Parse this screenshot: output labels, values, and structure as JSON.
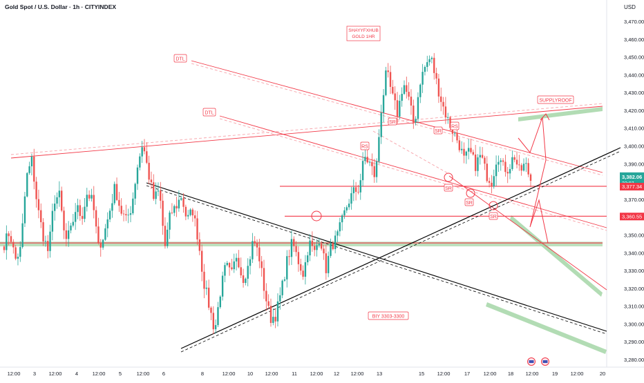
{
  "header": {
    "symbol": "Gold Spot / U.S. Dollar · 1h · CITYINDEX",
    "currency": "USD"
  },
  "colors": {
    "up": "#26a69a",
    "down": "#ef5350",
    "red_line": "#f23645",
    "pink_line": "#f7a1a8",
    "black_line": "#000000",
    "green_zone": "#a5d6a7",
    "last_price_bg": "#26a69a",
    "level_bg": "#f23645"
  },
  "chart_data": {
    "type": "candlestick",
    "title": "Gold Spot / U.S. Dollar · 1h · CITYINDEX",
    "ylabel": "USD",
    "ylim": [
      3275,
      3478
    ],
    "y_ticks": [
      "3,470.00",
      "3,460.00",
      "3,450.00",
      "3,440.00",
      "3,430.00",
      "3,420.00",
      "3,410.00",
      "3,400.00",
      "3,390.00",
      "3,380.00",
      "3,370.00",
      "3,360.00",
      "3,350.00",
      "3,340.00",
      "3,330.00",
      "3,320.00",
      "3,310.00",
      "3,300.00",
      "3,290.00",
      "3,280.00"
    ],
    "x_ticks": [
      "12:00",
      "3",
      "12:00",
      "4",
      "12:00",
      "5",
      "12:00",
      "6",
      "8",
      "12:00",
      "10",
      "12:00",
      "11",
      "12:00",
      "12",
      "12:00",
      "13",
      "15",
      "12:00",
      "17",
      "12:00",
      "18",
      "12:00",
      "19",
      "12:00",
      "20"
    ],
    "price_labels": {
      "last": "3,382.06",
      "countdown": "22:07",
      "level1": "3,377.34",
      "level2": "3,360.55"
    },
    "horizontal_levels": [
      3377.34,
      3360.55,
      3345.5
    ],
    "annotations": {
      "header_box": [
        "SHAYYFXHUB",
        "GOLD 1HR"
      ],
      "dtl_upper": "DTL",
      "dtl_lower": "DTL",
      "supply_roof": "SUPPLYROOF",
      "buy_zone": "BIY  3303-3300",
      "rs": "RS",
      "sr": "SR"
    },
    "path_targets": [
      [
        3345,
        3352,
        3336,
        3342,
        3382,
        3392,
        3366,
        3350,
        3340,
        3370,
        3372,
        3346,
        3352,
        3366,
        3360,
        3374,
        3368,
        3343,
        3350,
        3363,
        3377,
        3364,
        3358,
        3366,
        3388,
        3402,
        3385,
        3370,
        3375,
        3343,
        3362,
        3366,
        3372,
        3358,
        3364,
        3348,
        3324,
        3310,
        3296,
        3318,
        3333,
        3327,
        3340,
        3325,
        3332,
        3348,
        3338,
        3318,
        3303,
        3305,
        3318,
        3335,
        3346,
        3336,
        3328,
        3346,
        3340,
        3350,
        3330,
        3344,
        3348,
        3358,
        3368,
        3374,
        3376,
        3394,
        3390,
        3382,
        3420,
        3442,
        3428,
        3418,
        3436,
        3426,
        3411,
        3436,
        3445,
        3450,
        3436,
        3424,
        3415,
        3408,
        3402,
        3392,
        3397,
        3389,
        3395,
        3384,
        3380,
        3396,
        3388,
        3387,
        3395,
        3385,
        3390,
        3381
      ]
    ]
  }
}
